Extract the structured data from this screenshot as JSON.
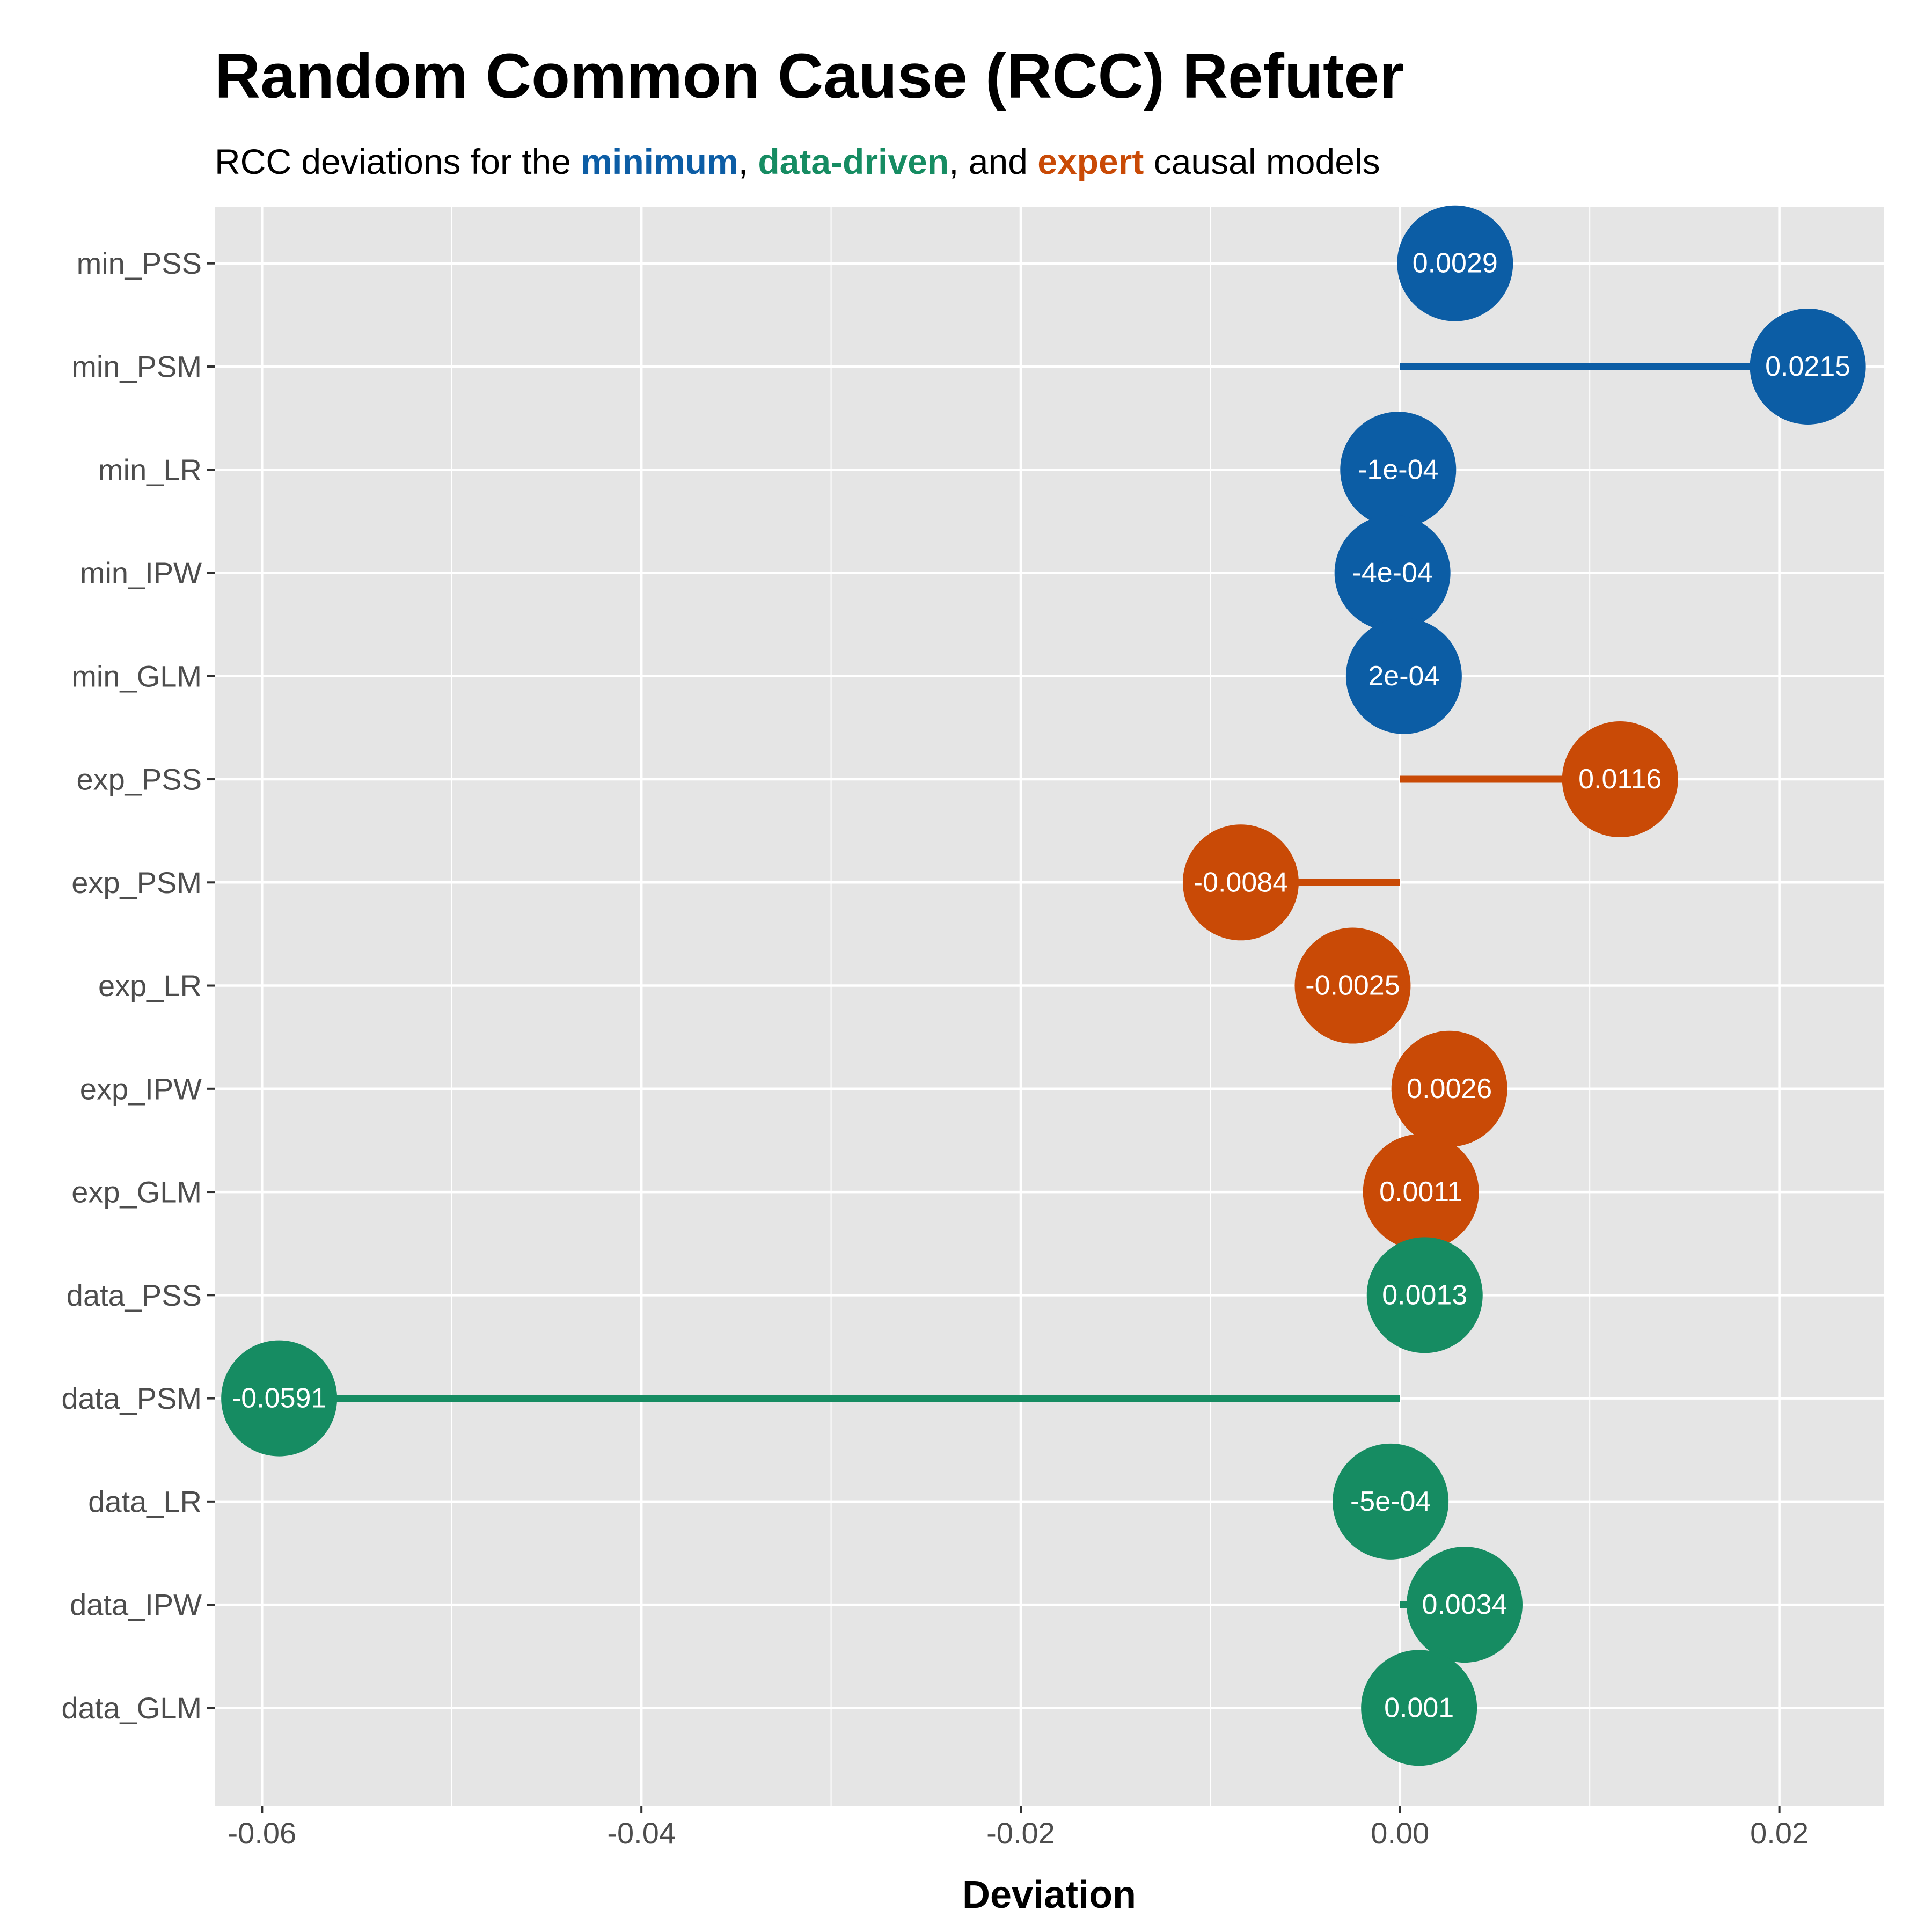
{
  "title": "Random Common Cause (RCC) Refuter",
  "subtitle": {
    "prefix": "RCC deviations for the ",
    "k1": "minimum",
    "sep1": ", ",
    "k2": "data-driven",
    "sep2": ", and ",
    "k3": "expert",
    "suffix": " causal models"
  },
  "colors": {
    "minimum": "#0C5DA5",
    "data-driven": "#168C62",
    "expert": "#C94A06",
    "panel": "#E5E5E5",
    "grid": "#FFFFFF"
  },
  "chart_data": {
    "type": "lollipop",
    "xlabel": "Deviation",
    "xlim": [
      -0.0625,
      0.0255
    ],
    "xticks": [
      -0.06,
      -0.04,
      -0.02,
      0.0,
      0.02
    ],
    "xtick_labels": [
      "-0.06",
      "-0.04",
      "-0.02",
      "0.00",
      "0.02"
    ],
    "baseline": 0,
    "grid": true,
    "categories": [
      "min_PSS",
      "min_PSM",
      "min_LR",
      "min_IPW",
      "min_GLM",
      "exp_PSS",
      "exp_PSM",
      "exp_LR",
      "exp_IPW",
      "exp_GLM",
      "data_PSS",
      "data_PSM",
      "data_LR",
      "data_IPW",
      "data_GLM"
    ],
    "values": [
      0.0029,
      0.0215,
      -0.0001,
      -0.0004,
      0.0002,
      0.0116,
      -0.0084,
      -0.0025,
      0.0026,
      0.0011,
      0.0013,
      -0.0591,
      -0.0005,
      0.0034,
      0.001
    ],
    "labels": [
      "0.0029",
      "0.0215",
      "-1e-04",
      "-4e-04",
      "2e-04",
      "0.0116",
      "-0.0084",
      "-0.0025",
      "0.0026",
      "0.0011",
      "0.0013",
      "-0.0591",
      "-5e-04",
      "0.0034",
      "0.001"
    ],
    "groups": [
      "minimum",
      "minimum",
      "minimum",
      "minimum",
      "minimum",
      "expert",
      "expert",
      "expert",
      "expert",
      "expert",
      "data-driven",
      "data-driven",
      "data-driven",
      "data-driven",
      "data-driven"
    ]
  }
}
